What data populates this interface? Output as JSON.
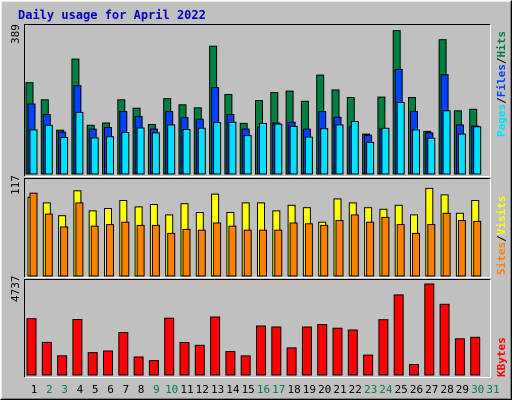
{
  "title": "Daily usage for April 2022",
  "colors": {
    "outer_bg": "#c0c0c0",
    "plot_bg": "#c0c0c0",
    "title": "#0000c0",
    "hits": "#008040",
    "files": "#0040ff",
    "pages": "#00e0ff",
    "visits": "#ffff00",
    "sites": "#ff8000",
    "kbytes": "#ff0000",
    "weekday_label": "#000000",
    "weekend_label": "#008040"
  },
  "panel_labels": {
    "top": {
      "hits": "Hits",
      "files": "Files",
      "pages": "Pages",
      "sep": "/"
    },
    "middle": {
      "visits": "Visits",
      "sites": "Sites",
      "sep": "/"
    },
    "bottom": {
      "kbytes": "KBytes"
    }
  },
  "y_max_labels": {
    "top": "389",
    "middle": "117",
    "bottom": "4737"
  },
  "chart_data": [
    {
      "type": "bar",
      "title": "Daily usage for April 2022",
      "categories": [
        "1",
        "2",
        "3",
        "4",
        "5",
        "6",
        "7",
        "8",
        "9",
        "10",
        "11",
        "12",
        "13",
        "14",
        "15",
        "16",
        "17",
        "18",
        "19",
        "20",
        "21",
        "22",
        "23",
        "24",
        "25",
        "26",
        "27",
        "28",
        "29",
        "30",
        "31"
      ],
      "weekend_days": [
        "2",
        "3",
        "9",
        "10",
        "16",
        "17",
        "23",
        "24",
        "30",
        "31"
      ],
      "ylim": [
        0,
        389
      ],
      "series": [
        {
          "name": "Hits",
          "values": [
            240,
            195,
            115,
            302,
            128,
            134,
            195,
            173,
            130,
            198,
            182,
            174,
            336,
            209,
            133,
            193,
            214,
            218,
            191,
            260,
            221,
            201,
            105,
            202,
            377,
            201,
            112,
            353,
            166,
            170,
            null
          ]
        },
        {
          "name": "Files",
          "values": [
            184,
            156,
            110,
            232,
            118,
            122,
            164,
            151,
            118,
            164,
            148,
            144,
            227,
            156,
            118,
            123,
            134,
            136,
            118,
            164,
            149,
            124,
            102,
            118,
            275,
            164,
            108,
            261,
            129,
            126,
            null
          ]
        },
        {
          "name": "Pages",
          "values": [
            116,
            128,
            96,
            162,
            95,
            98,
            109,
            121,
            108,
            129,
            117,
            120,
            135,
            136,
            101,
            133,
            131,
            125,
            97,
            119,
            129,
            138,
            83,
            120,
            188,
            116,
            94,
            166,
            105,
            124,
            null
          ]
        }
      ]
    },
    {
      "type": "bar",
      "categories": [
        "1",
        "2",
        "3",
        "4",
        "5",
        "6",
        "7",
        "8",
        "9",
        "10",
        "11",
        "12",
        "13",
        "14",
        "15",
        "16",
        "17",
        "18",
        "19",
        "20",
        "21",
        "22",
        "23",
        "24",
        "25",
        "26",
        "27",
        "28",
        "29",
        "30",
        "31"
      ],
      "ylim": [
        0,
        117
      ],
      "series": [
        {
          "name": "Visits",
          "values": [
            98,
            91,
            75,
            106,
            81,
            84,
            94,
            86,
            89,
            76,
            90,
            79,
            102,
            79,
            91,
            91,
            81,
            88,
            85,
            67,
            96,
            91,
            85,
            83,
            88,
            76,
            109,
            101,
            78,
            94,
            null
          ]
        },
        {
          "name": "Sites",
          "values": [
            103,
            77,
            61,
            91,
            62,
            64,
            67,
            63,
            63,
            53,
            58,
            57,
            66,
            62,
            57,
            57,
            57,
            66,
            65,
            63,
            69,
            76,
            67,
            73,
            64,
            53,
            64,
            78,
            69,
            68,
            null
          ]
        }
      ]
    },
    {
      "type": "bar",
      "categories": [
        "1",
        "2",
        "3",
        "4",
        "5",
        "6",
        "7",
        "8",
        "9",
        "10",
        "11",
        "12",
        "13",
        "14",
        "15",
        "16",
        "17",
        "18",
        "19",
        "20",
        "21",
        "22",
        "23",
        "24",
        "25",
        "26",
        "27",
        "28",
        "29",
        "30",
        "31"
      ],
      "ylim": [
        0,
        4737
      ],
      "series": [
        {
          "name": "KBytes",
          "values": [
            2930,
            1695,
            998,
            2888,
            1164,
            1248,
            2213,
            936,
            750,
            2955,
            1690,
            1548,
            3021,
            1218,
            996,
            2550,
            2498,
            1413,
            2500,
            2626,
            2437,
            2342,
            1036,
            2880,
            4167,
            542,
            4737,
            3681,
            1886,
            1964,
            null
          ]
        }
      ]
    }
  ]
}
